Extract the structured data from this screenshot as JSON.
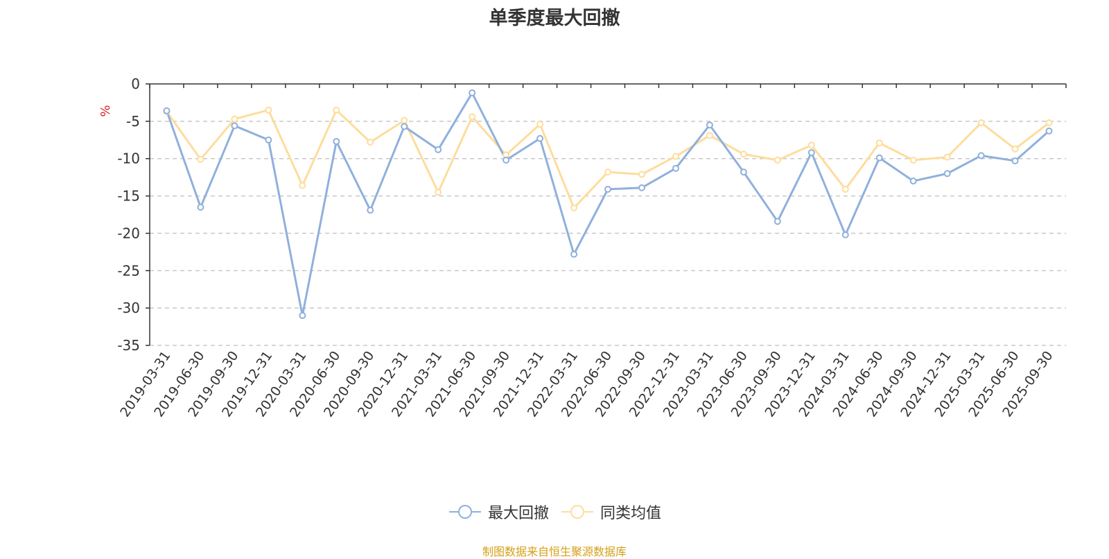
{
  "title": "单季度最大回撤",
  "source_note": "制图数据来自恒生聚源数据库",
  "chart_data": {
    "type": "line",
    "title": "单季度最大回撤",
    "ylabel": "%",
    "xlabel": "",
    "ylim": [
      -35,
      0
    ],
    "yticks": [
      0,
      -5,
      -10,
      -15,
      -20,
      -25,
      -30,
      -35
    ],
    "grid": true,
    "legend_position": "bottom",
    "categories": [
      "2019-03-31",
      "2019-06-30",
      "2019-09-30",
      "2019-12-31",
      "2020-03-31",
      "2020-06-30",
      "2020-09-30",
      "2020-12-31",
      "2021-03-31",
      "2021-06-30",
      "2021-09-30",
      "2021-12-31",
      "2022-03-31",
      "2022-06-30",
      "2022-09-30",
      "2022-12-31",
      "2023-03-31",
      "2023-06-30",
      "2023-09-30",
      "2023-12-31",
      "2024-03-31",
      "2024-06-30",
      "2024-09-30",
      "2024-12-31",
      "2025-03-31",
      "2025-06-30",
      "2025-09-30"
    ],
    "series": [
      {
        "name": "最大回撤",
        "color": "#8fb0dc",
        "values": [
          -3.6,
          -16.5,
          -5.6,
          -7.5,
          -31.0,
          -7.7,
          -16.9,
          -5.7,
          -8.8,
          -1.2,
          -10.2,
          -7.3,
          -22.8,
          -14.1,
          -13.9,
          -11.3,
          -5.5,
          -11.8,
          -18.4,
          -9.2,
          -20.2,
          -9.9,
          -13.0,
          -12.0,
          -9.6,
          -10.3,
          -6.3
        ]
      },
      {
        "name": "同类均值",
        "color": "#fddd9c",
        "values": [
          -3.7,
          -10.1,
          -4.7,
          -3.5,
          -13.6,
          -3.5,
          -7.8,
          -4.9,
          -14.5,
          -4.4,
          -9.5,
          -5.4,
          -16.6,
          -11.8,
          -12.1,
          -9.7,
          -6.9,
          -9.4,
          -10.2,
          -8.2,
          -14.1,
          -7.9,
          -10.2,
          -9.8,
          -5.2,
          -8.7,
          -5.2
        ]
      }
    ]
  }
}
